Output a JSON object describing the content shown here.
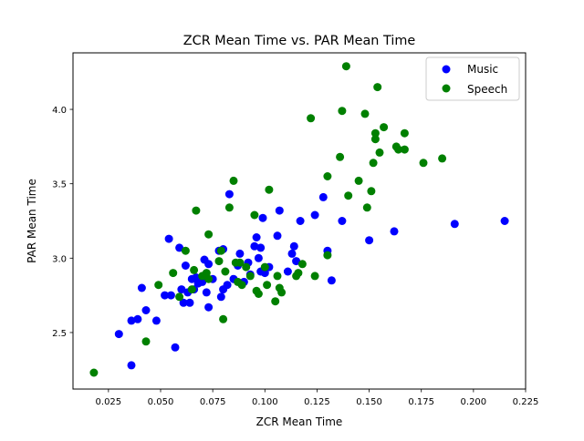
{
  "chart_data": {
    "type": "scatter",
    "title": "ZCR Mean Time vs. PAR Mean Time",
    "xlabel": "ZCR Mean Time",
    "ylabel": "PAR Mean Time",
    "xlim": [
      0.008,
      0.225
    ],
    "ylim": [
      2.12,
      4.38
    ],
    "x_ticks": [
      0.025,
      0.05,
      0.075,
      0.1,
      0.125,
      0.15,
      0.175,
      0.2,
      0.225
    ],
    "x_tick_labels": [
      "0.025",
      "0.050",
      "0.075",
      "0.100",
      "0.125",
      "0.150",
      "0.175",
      "0.200",
      "0.225"
    ],
    "y_ticks": [
      2.5,
      3.0,
      3.5,
      4.0
    ],
    "y_tick_labels": [
      "2.5",
      "3.0",
      "3.5",
      "4.0"
    ],
    "grid": false,
    "legend_position": "top-right",
    "series": [
      {
        "name": "Music",
        "color": "#0000ff",
        "points": [
          [
            0.03,
            2.49
          ],
          [
            0.036,
            2.58
          ],
          [
            0.036,
            2.28
          ],
          [
            0.039,
            2.59
          ],
          [
            0.041,
            2.8
          ],
          [
            0.043,
            2.65
          ],
          [
            0.048,
            2.58
          ],
          [
            0.052,
            2.75
          ],
          [
            0.054,
            3.13
          ],
          [
            0.055,
            2.75
          ],
          [
            0.057,
            2.4
          ],
          [
            0.059,
            3.07
          ],
          [
            0.06,
            2.79
          ],
          [
            0.061,
            2.7
          ],
          [
            0.062,
            2.95
          ],
          [
            0.063,
            2.77
          ],
          [
            0.064,
            2.7
          ],
          [
            0.065,
            2.86
          ],
          [
            0.066,
            2.79
          ],
          [
            0.067,
            2.87
          ],
          [
            0.068,
            2.83
          ],
          [
            0.07,
            2.84
          ],
          [
            0.071,
            2.99
          ],
          [
            0.072,
            2.77
          ],
          [
            0.073,
            2.96
          ],
          [
            0.073,
            2.67
          ],
          [
            0.075,
            2.86
          ],
          [
            0.078,
            3.05
          ],
          [
            0.079,
            2.74
          ],
          [
            0.08,
            3.06
          ],
          [
            0.08,
            2.79
          ],
          [
            0.082,
            2.82
          ],
          [
            0.083,
            3.43
          ],
          [
            0.085,
            2.86
          ],
          [
            0.087,
            2.95
          ],
          [
            0.088,
            3.03
          ],
          [
            0.09,
            2.84
          ],
          [
            0.092,
            2.97
          ],
          [
            0.093,
            2.89
          ],
          [
            0.095,
            3.08
          ],
          [
            0.096,
            3.14
          ],
          [
            0.097,
            3.0
          ],
          [
            0.098,
            3.07
          ],
          [
            0.098,
            2.91
          ],
          [
            0.099,
            3.27
          ],
          [
            0.1,
            2.9
          ],
          [
            0.102,
            2.94
          ],
          [
            0.106,
            3.15
          ],
          [
            0.107,
            3.32
          ],
          [
            0.111,
            2.91
          ],
          [
            0.113,
            3.03
          ],
          [
            0.114,
            3.08
          ],
          [
            0.115,
            2.98
          ],
          [
            0.117,
            3.25
          ],
          [
            0.124,
            3.29
          ],
          [
            0.128,
            3.41
          ],
          [
            0.13,
            3.05
          ],
          [
            0.132,
            2.85
          ],
          [
            0.137,
            3.25
          ],
          [
            0.15,
            3.12
          ],
          [
            0.162,
            3.18
          ],
          [
            0.191,
            3.23
          ],
          [
            0.215,
            3.25
          ]
        ]
      },
      {
        "name": "Speech",
        "color": "#008000",
        "points": [
          [
            0.018,
            2.23
          ],
          [
            0.043,
            2.44
          ],
          [
            0.049,
            2.82
          ],
          [
            0.056,
            2.9
          ],
          [
            0.059,
            2.74
          ],
          [
            0.062,
            3.05
          ],
          [
            0.065,
            2.79
          ],
          [
            0.066,
            2.92
          ],
          [
            0.067,
            3.32
          ],
          [
            0.07,
            2.88
          ],
          [
            0.072,
            2.9
          ],
          [
            0.073,
            2.86
          ],
          [
            0.073,
            3.16
          ],
          [
            0.078,
            2.98
          ],
          [
            0.079,
            3.05
          ],
          [
            0.08,
            2.59
          ],
          [
            0.081,
            2.91
          ],
          [
            0.083,
            3.34
          ],
          [
            0.085,
            3.52
          ],
          [
            0.086,
            2.97
          ],
          [
            0.087,
            2.84
          ],
          [
            0.088,
            2.97
          ],
          [
            0.089,
            2.82
          ],
          [
            0.091,
            2.94
          ],
          [
            0.093,
            2.88
          ],
          [
            0.095,
            3.29
          ],
          [
            0.096,
            2.78
          ],
          [
            0.097,
            2.76
          ],
          [
            0.1,
            2.94
          ],
          [
            0.101,
            2.82
          ],
          [
            0.102,
            3.46
          ],
          [
            0.105,
            2.71
          ],
          [
            0.106,
            2.88
          ],
          [
            0.107,
            2.8
          ],
          [
            0.108,
            2.77
          ],
          [
            0.115,
            2.88
          ],
          [
            0.116,
            2.9
          ],
          [
            0.118,
            2.96
          ],
          [
            0.122,
            3.94
          ],
          [
            0.124,
            2.88
          ],
          [
            0.13,
            3.55
          ],
          [
            0.13,
            3.02
          ],
          [
            0.136,
            3.68
          ],
          [
            0.137,
            3.99
          ],
          [
            0.139,
            4.29
          ],
          [
            0.14,
            3.42
          ],
          [
            0.145,
            3.52
          ],
          [
            0.148,
            3.97
          ],
          [
            0.149,
            3.34
          ],
          [
            0.151,
            3.45
          ],
          [
            0.152,
            3.64
          ],
          [
            0.153,
            3.8
          ],
          [
            0.153,
            3.84
          ],
          [
            0.154,
            4.15
          ],
          [
            0.155,
            3.71
          ],
          [
            0.157,
            3.88
          ],
          [
            0.163,
            3.75
          ],
          [
            0.164,
            3.73
          ],
          [
            0.167,
            3.73
          ],
          [
            0.167,
            3.84
          ],
          [
            0.176,
            3.64
          ],
          [
            0.185,
            3.67
          ]
        ]
      }
    ]
  }
}
